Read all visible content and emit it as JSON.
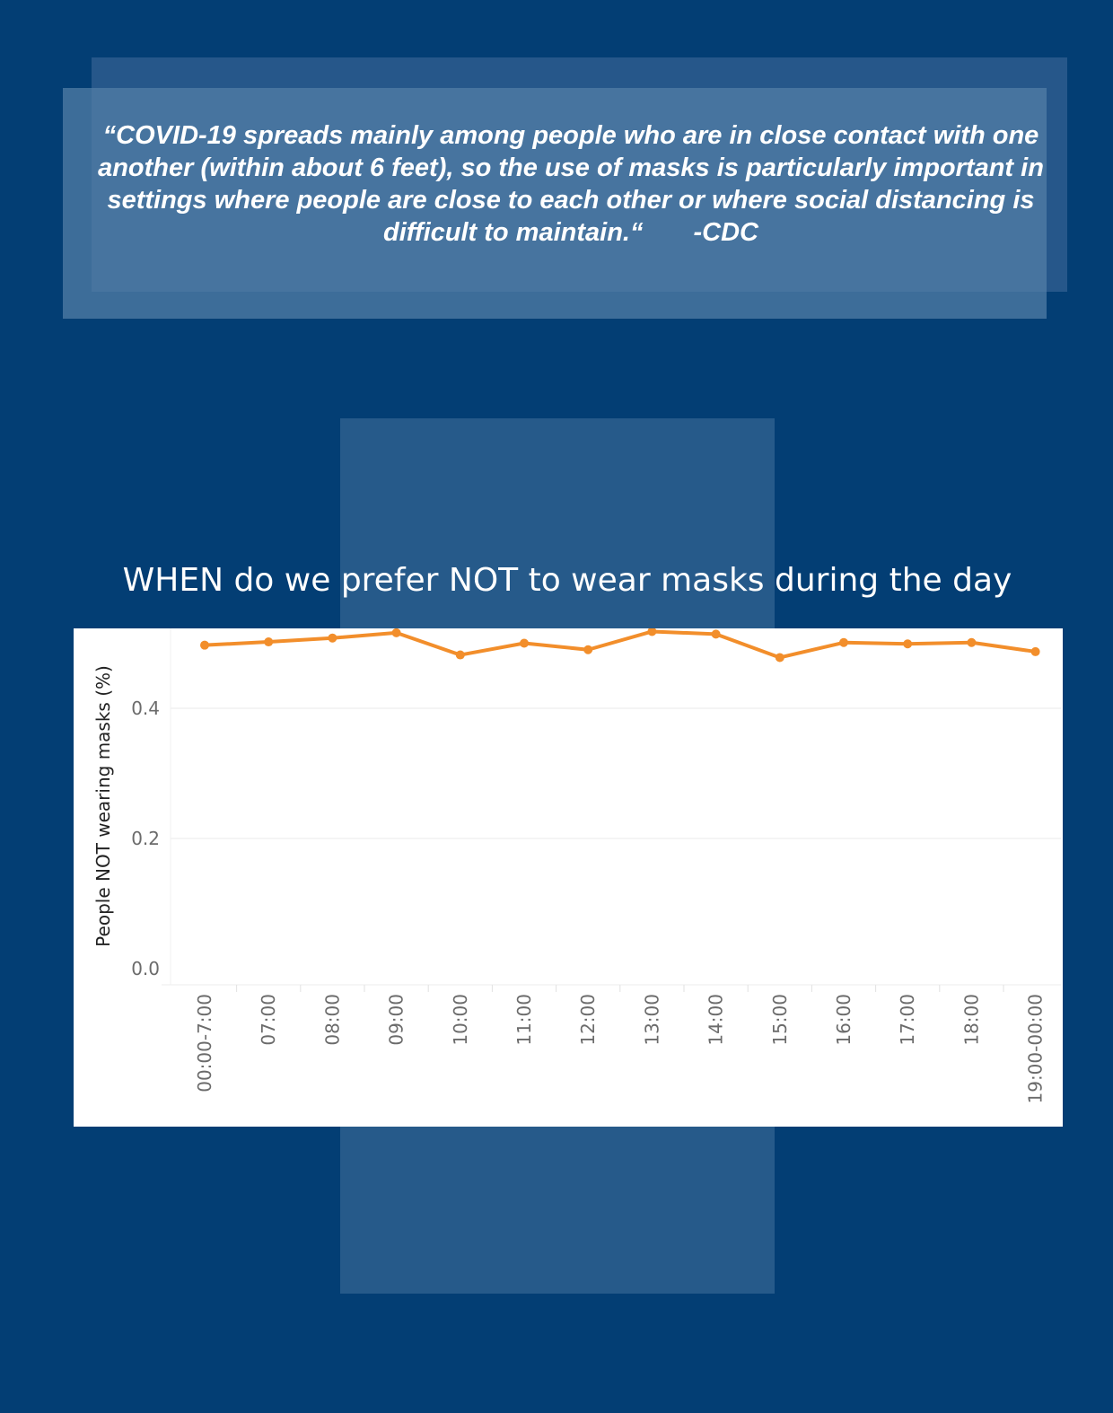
{
  "quote": {
    "text": "“COVID-19 spreads mainly among people who are in close contact with one another (within about 6 feet), so the use of masks is particularly important in settings where people are close to each other or where social distancing is difficult to maintain.“",
    "attribution": "-CDC"
  },
  "chart_data": {
    "type": "line",
    "title": "WHEN do we prefer NOT to wear masks during the day",
    "xlabel": "",
    "ylabel": "People NOT wearing masks (%)",
    "ylim": [
      0,
      0.55
    ],
    "yticks": [
      {
        "value": 0.0,
        "label": "0.0"
      },
      {
        "value": 0.2,
        "label": "0.2"
      },
      {
        "value": 0.4,
        "label": "0.4"
      }
    ],
    "grid": true,
    "legend": "none",
    "categories": [
      "00:00-7:00",
      "07:00",
      "08:00",
      "09:00",
      "10:00",
      "11:00",
      "12:00",
      "13:00",
      "14:00",
      "15:00",
      "16:00",
      "17:00",
      "18:00",
      "19:00-00:00"
    ],
    "series": [
      {
        "values": [
          0.497,
          0.502,
          0.508,
          0.516,
          0.482,
          0.5,
          0.49,
          0.518,
          0.514,
          0.478,
          0.501,
          0.499,
          0.501,
          0.487
        ],
        "color": "#f28e2b"
      }
    ]
  }
}
